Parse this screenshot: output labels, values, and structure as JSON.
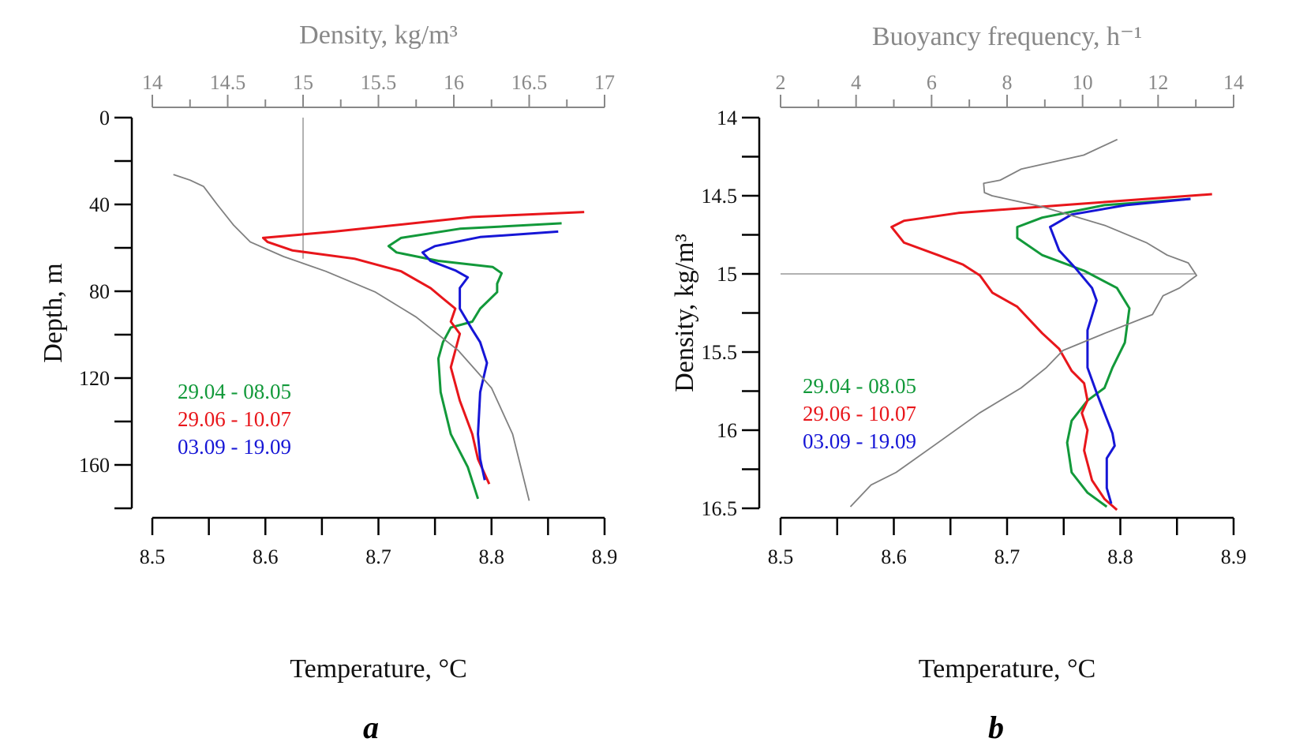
{
  "chart_data": [
    {
      "type": "line",
      "panel_label": "a",
      "xlabel": "Temperature, °C",
      "ylabel": "Depth, m",
      "x2label": "Density, kg/m³",
      "xlim": [
        8.5,
        8.9
      ],
      "ylim": [
        180,
        0
      ],
      "x2lim": [
        14,
        17
      ],
      "xticks": [
        "8.5",
        "8.6",
        "8.7",
        "8.8",
        "8.9"
      ],
      "yticks": [
        "0",
        "40",
        "80",
        "120",
        "160"
      ],
      "x2ticks": [
        "14",
        "14.5",
        "15",
        "15.5",
        "16",
        "16.5",
        "17"
      ],
      "legend": [
        "29.04 - 08.05",
        "29.06 - 10.07",
        "03.09 - 19.09"
      ],
      "legend_placement": "left-middle",
      "reference_line": {
        "axis": "x2",
        "value": 15,
        "y_range": [
          0,
          65
        ]
      },
      "series": [
        {
          "name": "29.04 - 08.05",
          "color": "#12993a",
          "axis": "x",
          "points": [
            [
              8.862,
              48.7
            ],
            [
              8.772,
              51.2
            ],
            [
              8.72,
              55.4
            ],
            [
              8.709,
              59.2
            ],
            [
              8.716,
              62.1
            ],
            [
              8.753,
              66
            ],
            [
              8.801,
              68.8
            ],
            [
              8.809,
              71.7
            ],
            [
              8.805,
              76.5
            ],
            [
              8.805,
              80.4
            ],
            [
              8.79,
              88
            ],
            [
              8.783,
              94
            ],
            [
              8.764,
              96.7
            ],
            [
              8.757,
              103.5
            ],
            [
              8.753,
              111
            ],
            [
              8.755,
              126.5
            ],
            [
              8.764,
              145.8
            ],
            [
              8.779,
              161
            ],
            [
              8.788,
              175.6
            ]
          ]
        },
        {
          "name": "29.06 - 10.07",
          "color": "#e8161b",
          "axis": "x",
          "points": [
            [
              8.882,
              43.5
            ],
            [
              8.783,
              45.8
            ],
            [
              8.661,
              52.5
            ],
            [
              8.598,
              55.4
            ],
            [
              8.602,
              57.3
            ],
            [
              8.624,
              61.2
            ],
            [
              8.679,
              65
            ],
            [
              8.72,
              70.8
            ],
            [
              8.746,
              78.5
            ],
            [
              8.757,
              83.3
            ],
            [
              8.768,
              88
            ],
            [
              8.764,
              94
            ],
            [
              8.772,
              99.6
            ],
            [
              8.768,
              107.3
            ],
            [
              8.764,
              115
            ],
            [
              8.772,
              130.4
            ],
            [
              8.783,
              145.8
            ],
            [
              8.788,
              157.3
            ],
            [
              8.798,
              168.8
            ]
          ]
        },
        {
          "name": "03.09 - 19.09",
          "color": "#1616d6",
          "axis": "x",
          "points": [
            [
              8.859,
              52.5
            ],
            [
              8.79,
              55
            ],
            [
              8.75,
              59.2
            ],
            [
              8.739,
              62.1
            ],
            [
              8.746,
              66
            ],
            [
              8.768,
              70.4
            ],
            [
              8.779,
              73.6
            ],
            [
              8.772,
              78.5
            ],
            [
              8.772,
              88
            ],
            [
              8.783,
              97.7
            ],
            [
              8.79,
              103.5
            ],
            [
              8.796,
              113
            ],
            [
              8.79,
              126.5
            ],
            [
              8.788,
              145.8
            ],
            [
              8.79,
              157.3
            ],
            [
              8.794,
              167
            ]
          ]
        },
        {
          "name": "",
          "color": "#808080",
          "axis": "x2",
          "points": [
            [
              14.14,
              26.2
            ],
            [
              14.25,
              28.8
            ],
            [
              14.34,
              31.7
            ],
            [
              14.43,
              40
            ],
            [
              14.54,
              49.6
            ],
            [
              14.65,
              57.3
            ],
            [
              14.87,
              64
            ],
            [
              15.15,
              70.8
            ],
            [
              15.48,
              80.4
            ],
            [
              15.75,
              91.9
            ],
            [
              16.03,
              107.3
            ],
            [
              16.25,
              124.6
            ],
            [
              16.39,
              145.8
            ],
            [
              16.5,
              176.5
            ]
          ]
        }
      ]
    },
    {
      "type": "line",
      "panel_label": "b",
      "xlabel": "Temperature, °C",
      "ylabel": "Density, kg/m³",
      "x2label": "Buoyancy frequency, h⁻¹",
      "xlim": [
        8.5,
        8.9
      ],
      "ylim": [
        16.5,
        14
      ],
      "x2lim": [
        2,
        14
      ],
      "xticks": [
        "8.5",
        "8.6",
        "8.7",
        "8.8",
        "8.9"
      ],
      "yticks": [
        "14",
        "14.5",
        "15",
        "15.5",
        "16",
        "16.5"
      ],
      "x2ticks": [
        "2",
        "4",
        "6",
        "8",
        "10",
        "12",
        "14"
      ],
      "legend": [
        "29.04 - 08.05",
        "29.06 - 10.07",
        "03.09 - 19.09"
      ],
      "legend_placement": "left-middle",
      "reference_line": {
        "axis": "y",
        "value": 15,
        "x2_range": [
          2,
          13
        ]
      },
      "series": [
        {
          "name": "29.04 - 08.05",
          "color": "#12993a",
          "axis": "x",
          "points": [
            [
              8.862,
              14.52
            ],
            [
              8.786,
              14.56
            ],
            [
              8.731,
              14.64
            ],
            [
              8.709,
              14.7
            ],
            [
              8.709,
              14.77
            ],
            [
              8.731,
              14.88
            ],
            [
              8.768,
              14.98
            ],
            [
              8.797,
              15.09
            ],
            [
              8.808,
              15.22
            ],
            [
              8.804,
              15.44
            ],
            [
              8.793,
              15.6
            ],
            [
              8.786,
              15.73
            ],
            [
              8.771,
              15.81
            ],
            [
              8.757,
              15.94
            ],
            [
              8.753,
              16.08
            ],
            [
              8.757,
              16.27
            ],
            [
              8.771,
              16.4
            ],
            [
              8.788,
              16.49
            ]
          ]
        },
        {
          "name": "29.06 - 10.07",
          "color": "#e8161b",
          "axis": "x",
          "points": [
            [
              8.881,
              14.49
            ],
            [
              8.749,
              14.56
            ],
            [
              8.657,
              14.61
            ],
            [
              8.609,
              14.66
            ],
            [
              8.598,
              14.7
            ],
            [
              8.609,
              14.8
            ],
            [
              8.639,
              14.88
            ],
            [
              8.661,
              14.94
            ],
            [
              8.676,
              15.01
            ],
            [
              8.687,
              15.12
            ],
            [
              8.709,
              15.21
            ],
            [
              8.731,
              15.38
            ],
            [
              8.746,
              15.48
            ],
            [
              8.757,
              15.62
            ],
            [
              8.768,
              15.7
            ],
            [
              8.771,
              15.81
            ],
            [
              8.766,
              15.89
            ],
            [
              8.771,
              16.0
            ],
            [
              8.768,
              16.13
            ],
            [
              8.775,
              16.32
            ],
            [
              8.786,
              16.44
            ],
            [
              8.797,
              16.51
            ]
          ]
        },
        {
          "name": "03.09 - 19.09",
          "color": "#1616d6",
          "axis": "x",
          "points": [
            [
              8.862,
              14.52
            ],
            [
              8.805,
              14.56
            ],
            [
              8.757,
              14.62
            ],
            [
              8.738,
              14.7
            ],
            [
              8.746,
              14.85
            ],
            [
              8.76,
              14.96
            ],
            [
              8.775,
              15.09
            ],
            [
              8.779,
              15.17
            ],
            [
              8.771,
              15.36
            ],
            [
              8.771,
              15.6
            ],
            [
              8.779,
              15.76
            ],
            [
              8.786,
              15.89
            ],
            [
              8.793,
              16.02
            ],
            [
              8.795,
              16.1
            ],
            [
              8.788,
              16.18
            ],
            [
              8.788,
              16.37
            ],
            [
              8.792,
              16.47
            ]
          ]
        },
        {
          "name": "",
          "color": "#808080",
          "axis": "x2",
          "points": [
            [
              10.92,
              14.14
            ],
            [
              10.03,
              14.24
            ],
            [
              8.37,
              14.33
            ],
            [
              7.82,
              14.4
            ],
            [
              7.38,
              14.42
            ],
            [
              7.4,
              14.48
            ],
            [
              7.6,
              14.5
            ],
            [
              8.93,
              14.57
            ],
            [
              10.59,
              14.69
            ],
            [
              11.69,
              14.8
            ],
            [
              12.24,
              14.88
            ],
            [
              12.8,
              14.93
            ],
            [
              13.02,
              15.01
            ],
            [
              12.57,
              15.09
            ],
            [
              12.13,
              15.14
            ],
            [
              11.85,
              15.26
            ],
            [
              10.59,
              15.38
            ],
            [
              9.48,
              15.49
            ],
            [
              9.04,
              15.6
            ],
            [
              8.37,
              15.73
            ],
            [
              7.27,
              15.89
            ],
            [
              6.17,
              16.08
            ],
            [
              5.06,
              16.27
            ],
            [
              4.4,
              16.35
            ],
            [
              3.85,
              16.49
            ]
          ]
        }
      ]
    }
  ]
}
